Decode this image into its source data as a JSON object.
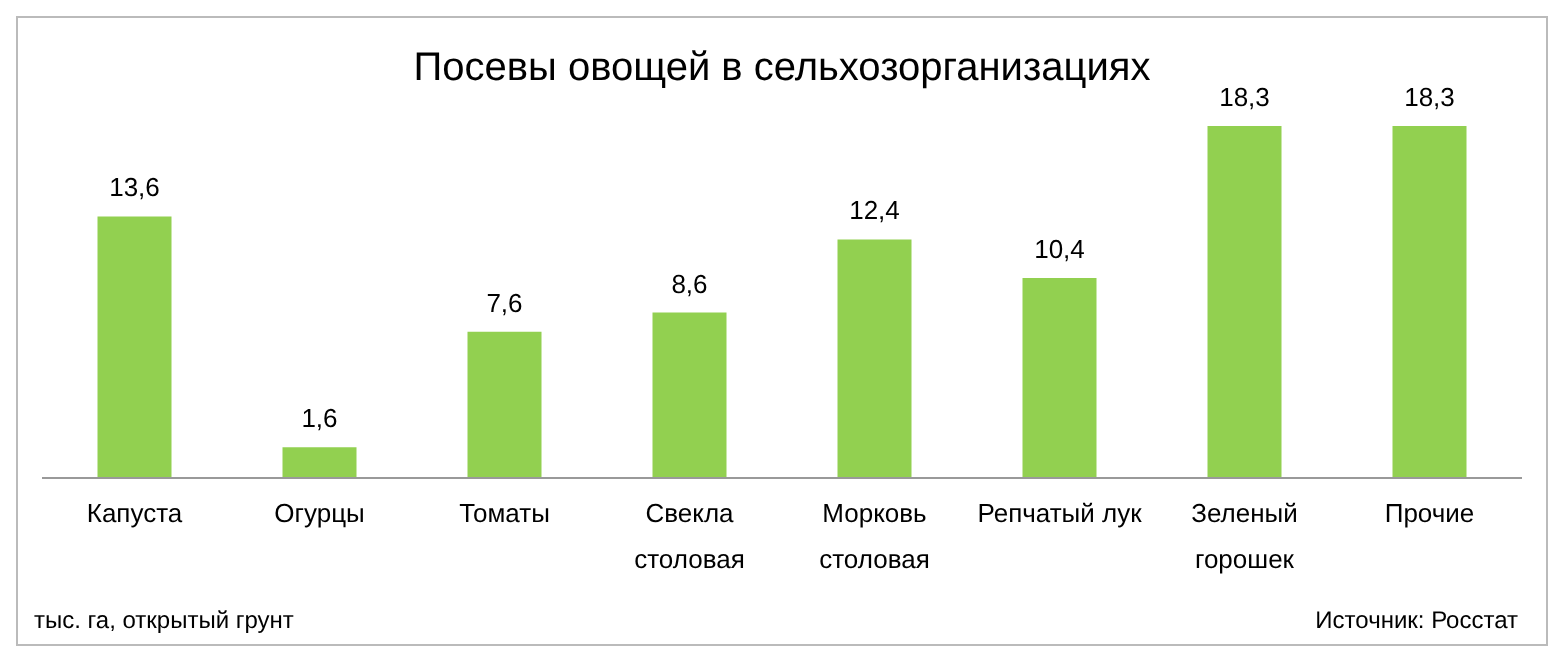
{
  "chart_data": {
    "type": "bar",
    "title": "Посевы овощей в сельхозорганизациях",
    "categories": [
      "Капуста",
      "Огурцы",
      "Томаты",
      "Свекла столовая",
      "Морковь столовая",
      "Репчатый лук",
      "Зеленый горошек",
      "Прочие"
    ],
    "values": [
      13.6,
      1.6,
      7.6,
      8.6,
      12.4,
      10.4,
      18.3,
      18.3
    ],
    "value_labels": [
      "13,6",
      "1,6",
      "7,6",
      "8,6",
      "12,4",
      "10,4",
      "18,3",
      "18,3"
    ],
    "color": "#92d050",
    "annotations": [
      "тыс. га, открытый грунт",
      "Источник: Росстат"
    ]
  }
}
